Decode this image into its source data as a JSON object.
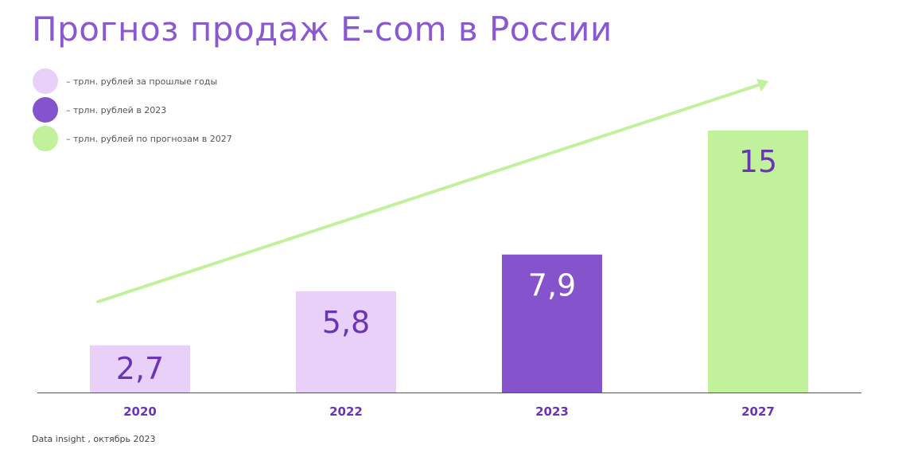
{
  "colors": {
    "title": "#8a58cf",
    "past": "#e8d0f8",
    "current": "#8553cc",
    "forecast": "#c2f19c",
    "label_dark": "#6a35b5",
    "label_light": "#ffffff",
    "axis": "#555555",
    "arrow": "#c2f19c"
  },
  "chart_data": {
    "type": "bar",
    "title": "Прогноз продаж E-com в России",
    "categories": [
      "2020",
      "2022",
      "2023",
      "2027"
    ],
    "values": [
      2.7,
      5.8,
      7.9,
      15
    ],
    "value_labels": [
      "2,7",
      "5,8",
      "7,9",
      "15"
    ],
    "bar_groups": [
      "past",
      "past",
      "current",
      "forecast"
    ],
    "ylim": [
      0,
      15
    ],
    "grid": false,
    "legend": [
      {
        "label": "– трлн. рублей за прошлые годы",
        "color_key": "past"
      },
      {
        "label": "– трлн. рублей в 2023",
        "color_key": "current"
      },
      {
        "label": "– трлн. рублей по прогнозам в 2027",
        "color_key": "forecast"
      }
    ],
    "legend_position": "top-left",
    "trend_arrow": true
  },
  "footer": {
    "source": "Data insight , октябрь 2023"
  }
}
